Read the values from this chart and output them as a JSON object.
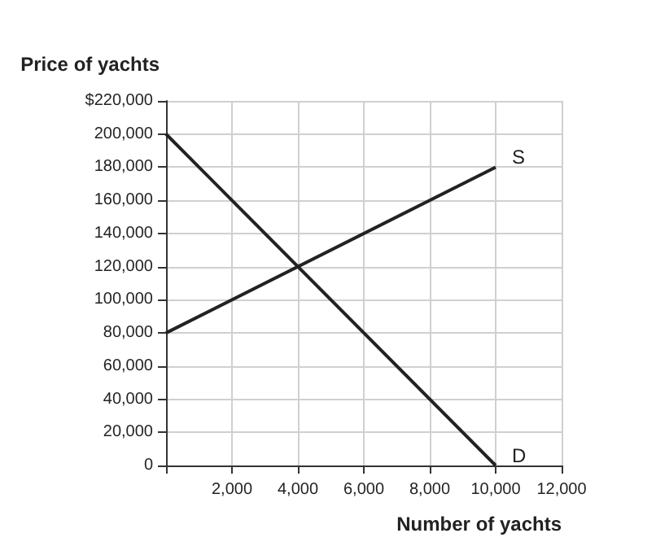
{
  "chart_data": {
    "type": "line",
    "ylabel": "Price of yachts",
    "xlabel": "Number of yachts",
    "x": [
      0,
      10000
    ],
    "series": [
      {
        "name": "S",
        "color": "#222222",
        "values": [
          80000,
          180000
        ]
      },
      {
        "name": "D",
        "color": "#222222",
        "values": [
          200000,
          0
        ]
      }
    ],
    "xlim": [
      0,
      12000
    ],
    "xticks": [
      {
        "value": 0,
        "label": null
      },
      {
        "value": 2000,
        "label": "2,000"
      },
      {
        "value": 4000,
        "label": "4,000"
      },
      {
        "value": 6000,
        "label": "6,000"
      },
      {
        "value": 8000,
        "label": "8,000"
      },
      {
        "value": 10000,
        "label": "10,000"
      },
      {
        "value": 12000,
        "label": "12,000"
      }
    ],
    "ylim": [
      0,
      220000
    ],
    "yticks": [
      0,
      {
        "value": 20000,
        "label": "20,000"
      },
      {
        "value": 40000,
        "label": "40,000"
      },
      {
        "value": 60000,
        "label": "60,000"
      },
      {
        "value": 80000,
        "label": "80,000"
      },
      {
        "value": 100000,
        "label": "100,000"
      },
      {
        "value": 120000,
        "label": "120,000"
      },
      {
        "value": 140000,
        "label": "140,000"
      },
      {
        "value": 160000,
        "label": "160,000"
      },
      {
        "value": 180000,
        "label": "180,000"
      },
      {
        "value": 200000,
        "label": "200,000"
      },
      {
        "value": 220000,
        "label": "$220,000"
      }
    ],
    "grid": true,
    "legend": false,
    "marker": "none",
    "line_style": "solid"
  }
}
